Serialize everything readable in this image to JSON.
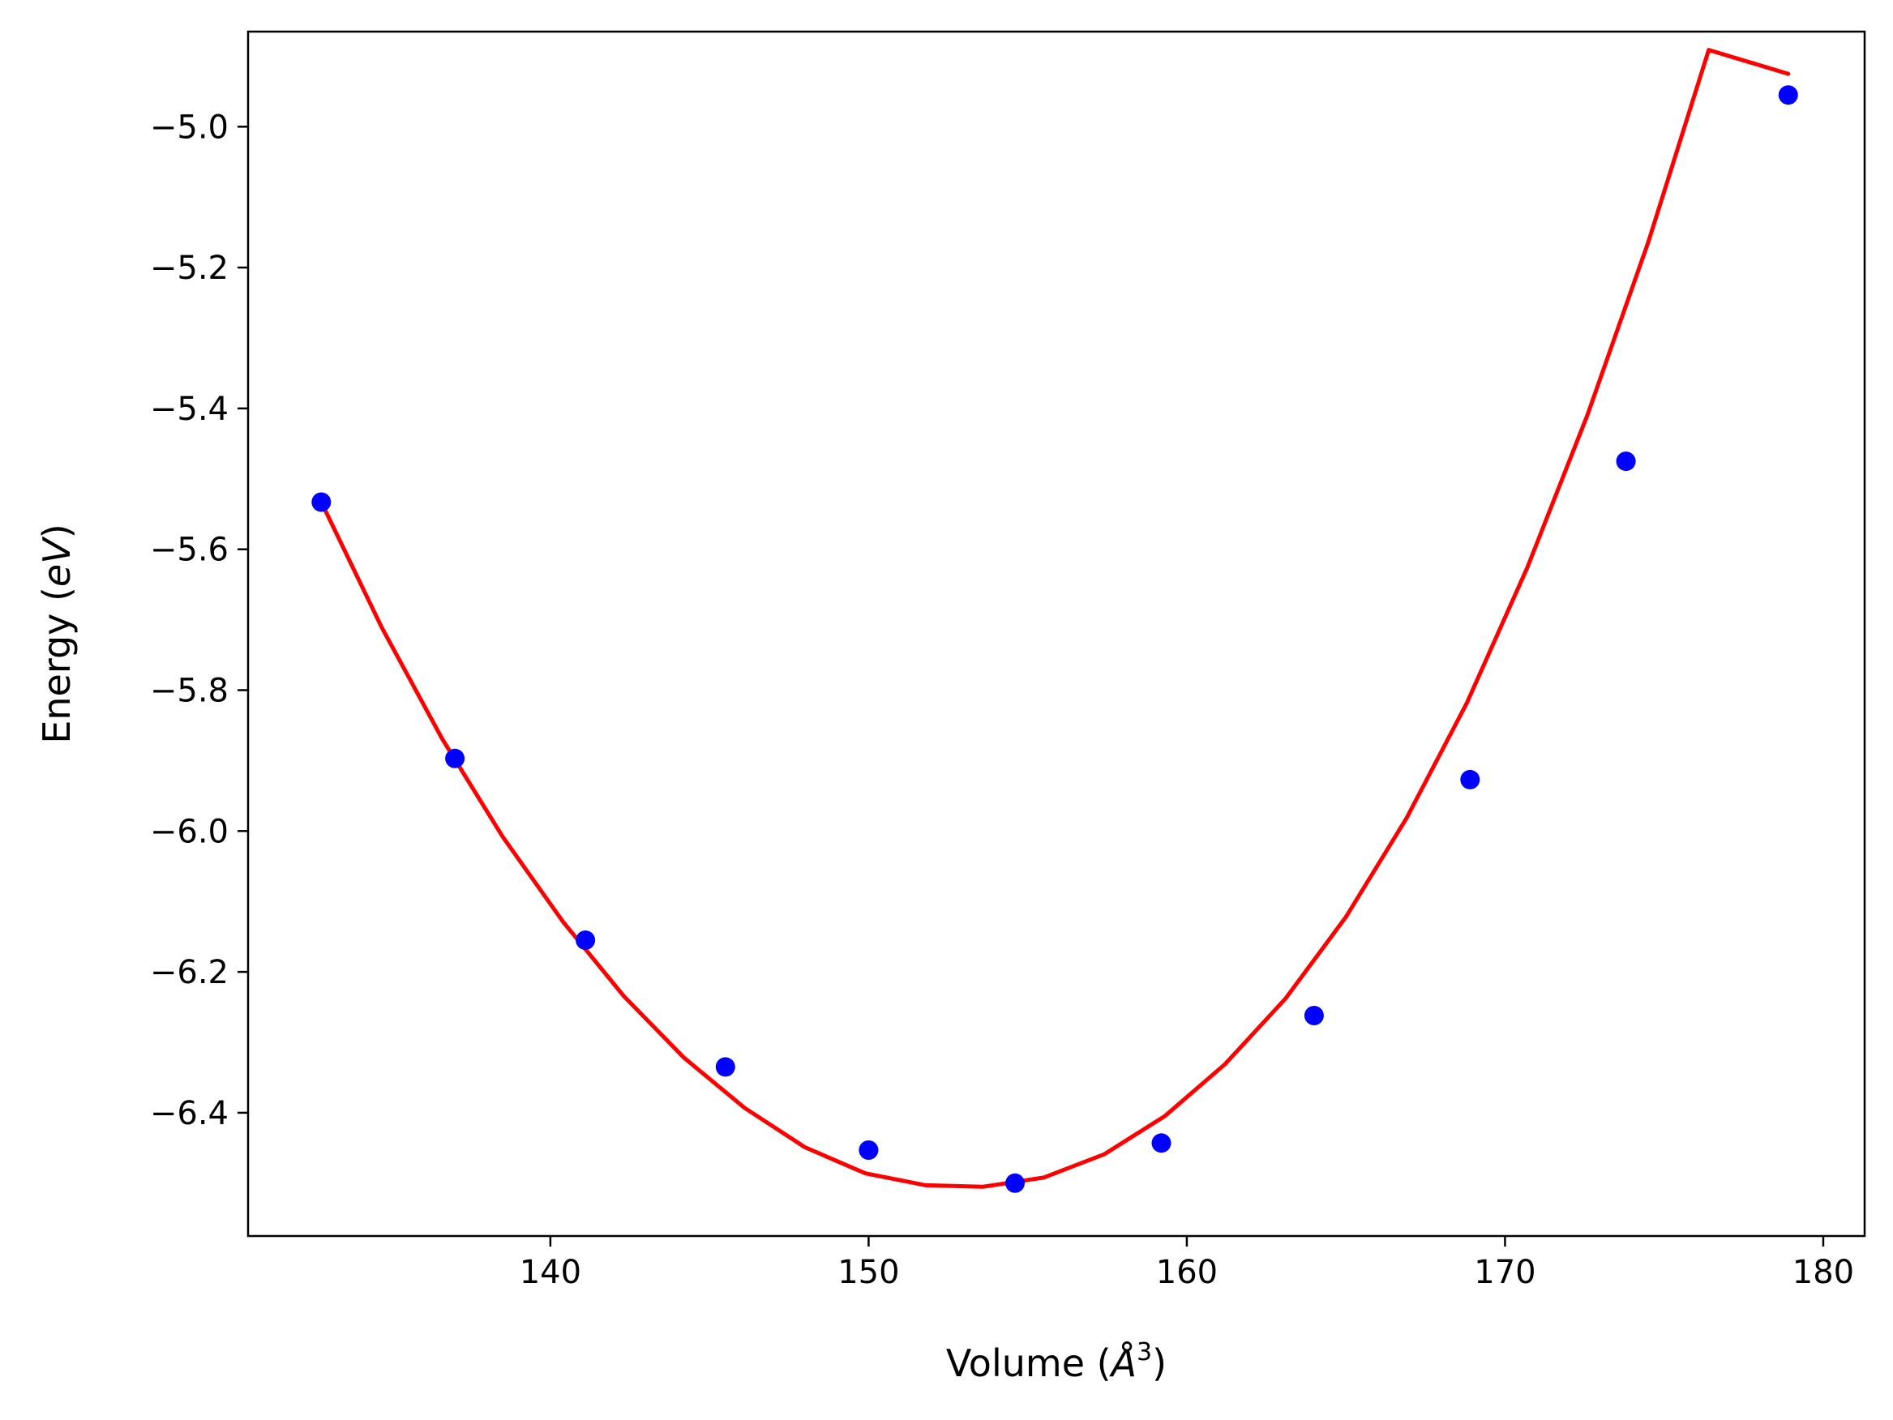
{
  "chart_data": {
    "type": "scatter",
    "xlabel": "Volume (",
    "xlabel_symbol": "Å",
    "xlabel_sup": "3",
    "xlabel_close": ")",
    "ylabel": "Energy (",
    "ylabel_symbol": "eV",
    "ylabel_close": ")",
    "xlim": [
      130.5,
      181.3
    ],
    "ylim": [
      -6.575,
      -4.865
    ],
    "x_ticks": [
      140,
      150,
      160,
      170,
      180
    ],
    "x_tick_labels": [
      "140",
      "150",
      "160",
      "170",
      "180"
    ],
    "y_ticks": [
      -5.0,
      -5.2,
      -5.4,
      -5.6,
      -5.8,
      -6.0,
      -6.2,
      -6.4
    ],
    "y_tick_labels": [
      "−5.0",
      "−5.2",
      "−5.4",
      "−5.6",
      "−5.8",
      "−6.0",
      "−6.2",
      "−6.4"
    ],
    "grid": false,
    "legend": "none",
    "series": [
      {
        "kind": "points",
        "color": "#0000ff",
        "x": [
          132.8,
          137.0,
          141.1,
          145.5,
          150.0,
          154.6,
          159.2,
          164.0,
          168.9,
          173.8,
          178.9
        ],
        "y": [
          -5.533,
          -5.897,
          -6.155,
          -6.335,
          -6.453,
          -6.5,
          -6.443,
          -6.262,
          -5.927,
          -5.475,
          -4.955
        ]
      },
      {
        "kind": "fit-line",
        "color": "#ff0000",
        "x": [
          132.8,
          134.7,
          136.6,
          138.5,
          140.4,
          142.3,
          144.2,
          146.1,
          148.0,
          149.9,
          151.8,
          153.6,
          155.5,
          157.4,
          159.3,
          161.2,
          163.1,
          165.0,
          166.9,
          168.8,
          170.7,
          172.6,
          174.5,
          176.4,
          178.9
        ],
        "y": [
          -5.533,
          -5.711,
          -5.869,
          -6.008,
          -6.129,
          -6.234,
          -6.322,
          -6.393,
          -6.449,
          -6.486,
          -6.503,
          -6.505,
          -6.492,
          -6.459,
          -6.405,
          -6.331,
          -6.238,
          -6.122,
          -5.982,
          -5.818,
          -5.626,
          -5.408,
          -5.164,
          -4.891,
          -4.925
        ]
      }
    ]
  }
}
